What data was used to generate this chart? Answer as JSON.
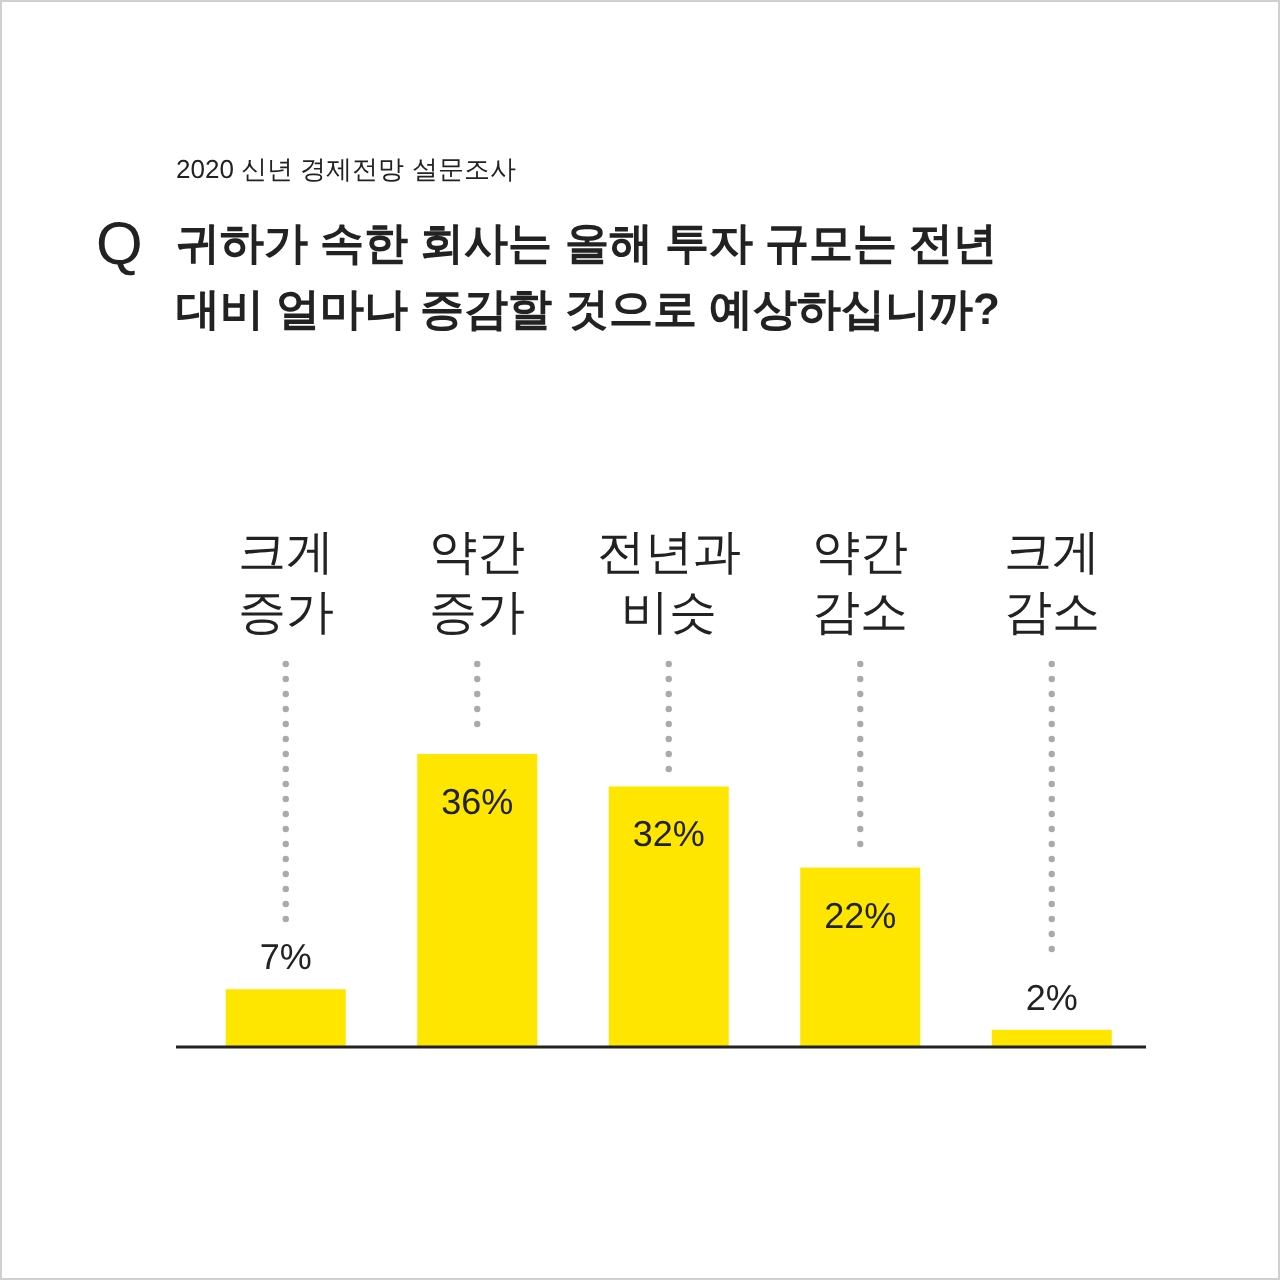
{
  "chart_data": {
    "type": "bar",
    "subtitle": "2020 신년 경제전망 설문조사",
    "title": "귀하가 속한 회사는 올해 투자 규모는 전년 대비 얼마나 증감할 것으로 예상하십니까?",
    "annotations": [
      "Q"
    ],
    "categories": [
      "크게 증가",
      "약간 증가",
      "전년과 비슷",
      "약간 감소",
      "크게 감소"
    ],
    "values": [
      7,
      36,
      32,
      22,
      2
    ],
    "color": "#ffe600",
    "data_labels": true,
    "value_labels": [
      "7%",
      "36%",
      "32%",
      "22%",
      "2%"
    ]
  }
}
